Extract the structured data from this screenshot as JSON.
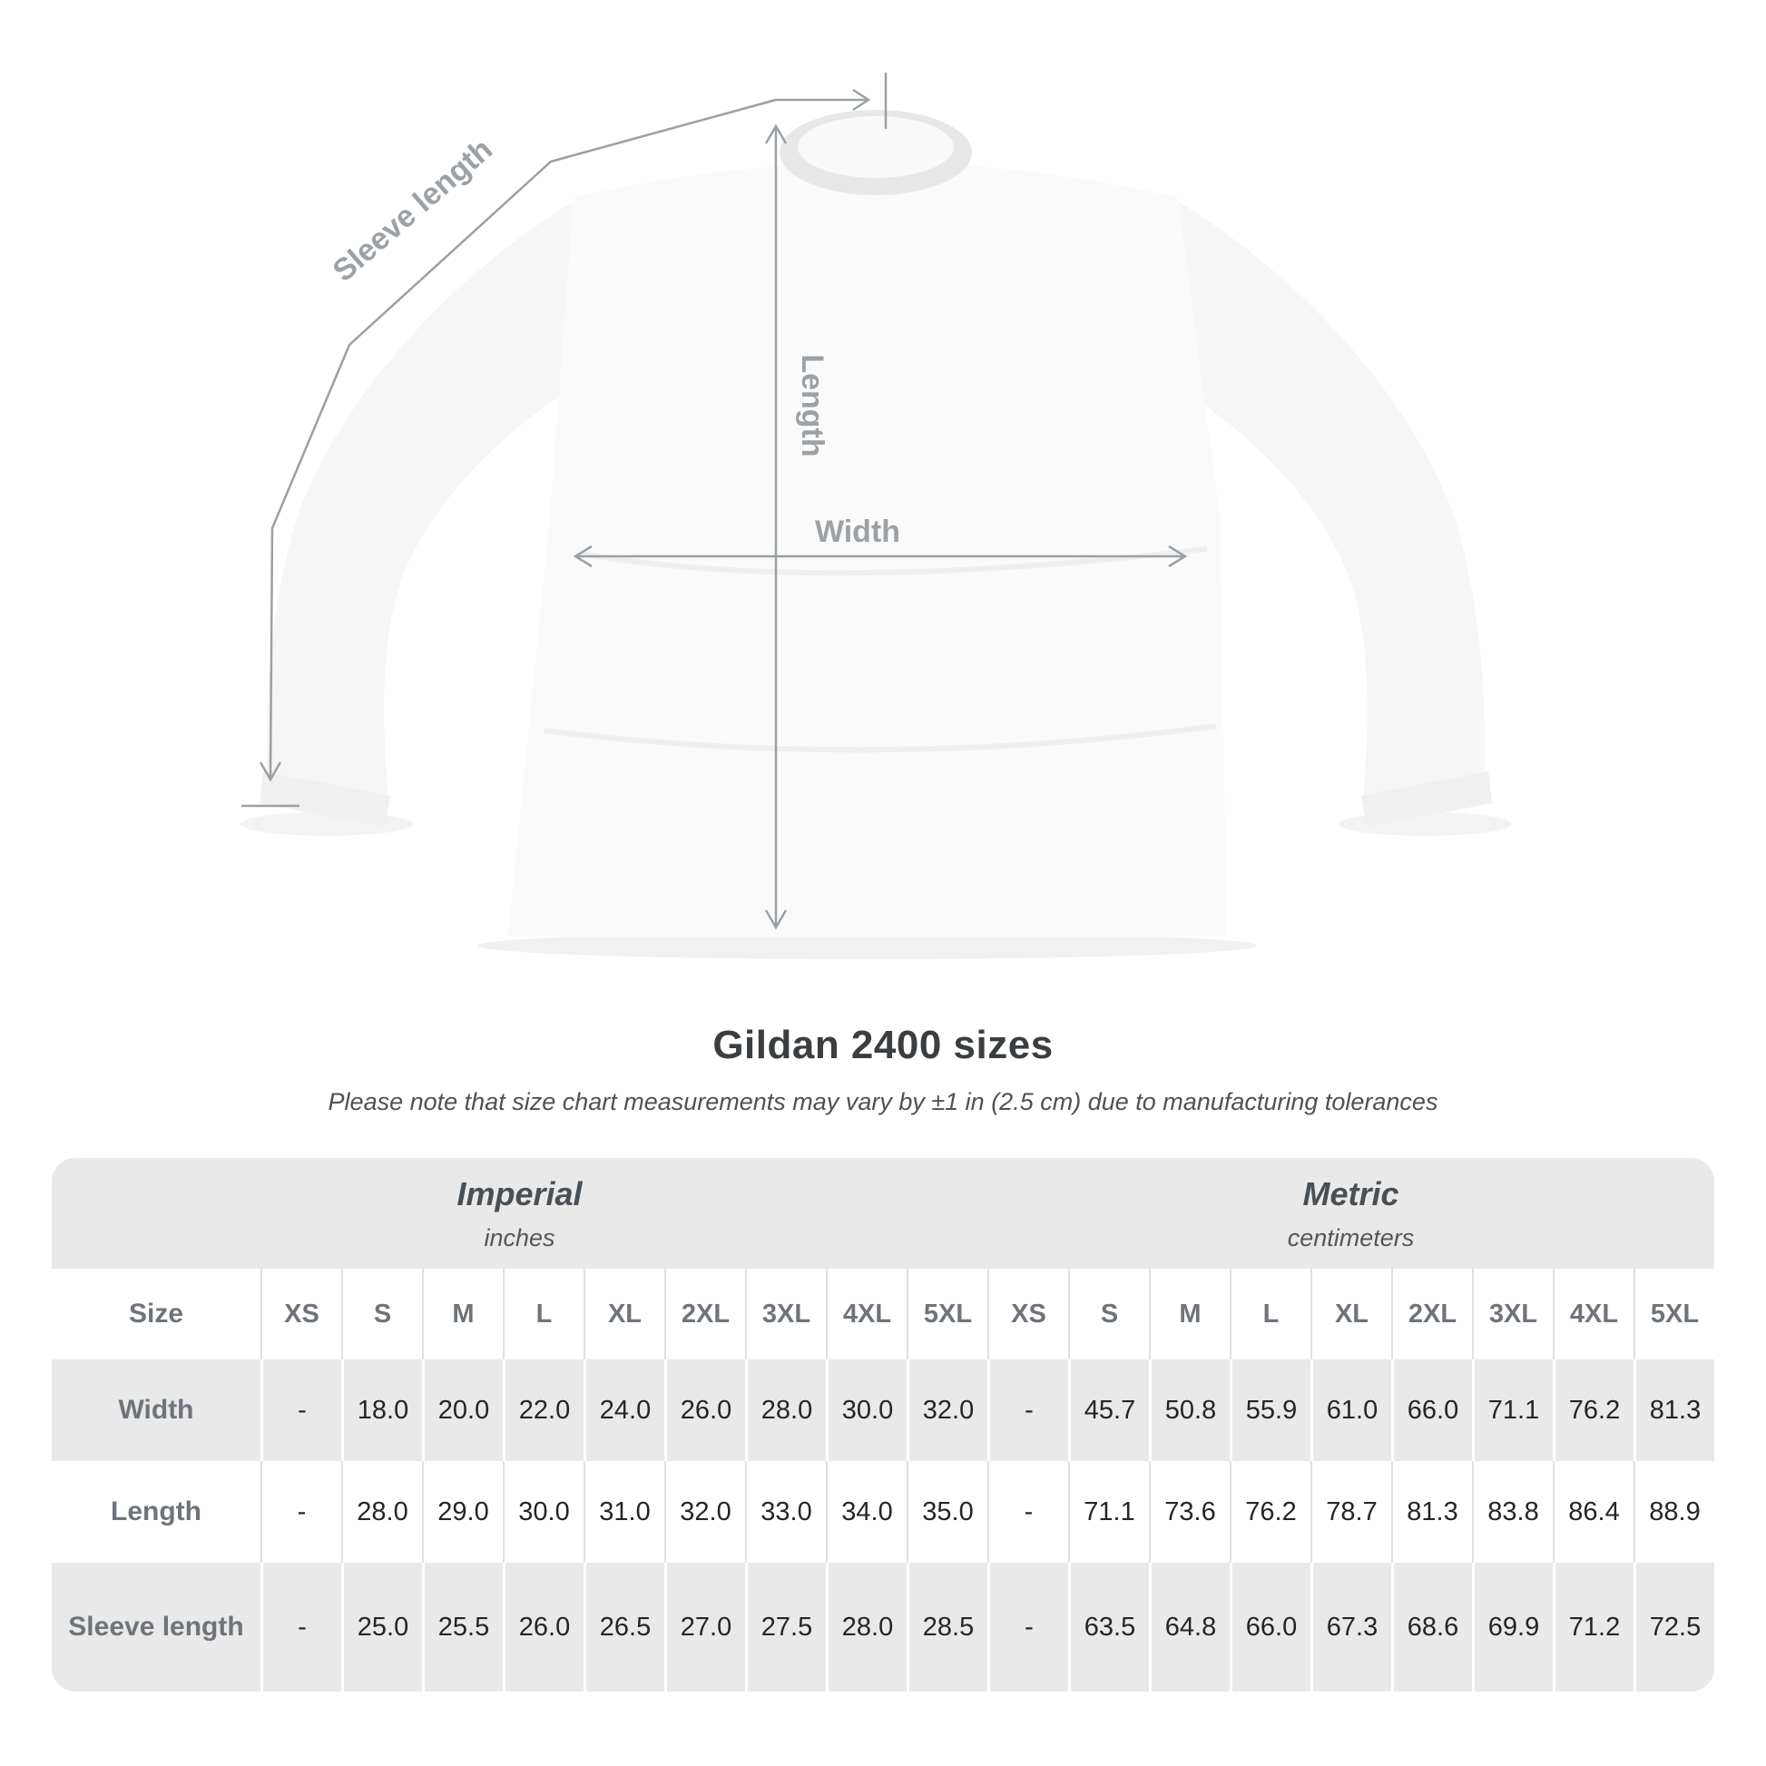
{
  "diagram": {
    "sleeve_label": "Sleeve length",
    "length_label": "Length",
    "width_label": "Width",
    "line_color": "#9aa0a4",
    "label_color": "#9ba1a5"
  },
  "title": "Gildan 2400 sizes",
  "note": "Please note that size chart measurements may vary by ±1 in (2.5 cm) due to manufacturing tolerances",
  "colors": {
    "title_text": "#3b3e40",
    "note_text": "#4e5254",
    "header_text": "#6e747a",
    "value_text": "#232629",
    "row_alt_bg": "#e9e9ea",
    "row_bg": "#ffffff"
  },
  "chart_data": {
    "type": "table",
    "title": "Gildan 2400 sizes",
    "note": "Please note that size chart measurements may vary by ±1 in (2.5 cm) due to manufacturing tolerances",
    "column_groups": [
      {
        "label": "Imperial",
        "sublabel": "inches"
      },
      {
        "label": "Metric",
        "sublabel": "centimeters"
      }
    ],
    "corner_header": "Size",
    "columns": [
      "XS",
      "S",
      "M",
      "L",
      "XL",
      "2XL",
      "3XL",
      "4XL",
      "5XL",
      "XS",
      "S",
      "M",
      "L",
      "XL",
      "2XL",
      "3XL",
      "4XL",
      "5XL"
    ],
    "rows": [
      {
        "label": "Width",
        "values": [
          "-",
          "18.0",
          "20.0",
          "22.0",
          "24.0",
          "26.0",
          "28.0",
          "30.0",
          "32.0",
          "-",
          "45.7",
          "50.8",
          "55.9",
          "61.0",
          "66.0",
          "71.1",
          "76.2",
          "81.3"
        ]
      },
      {
        "label": "Length",
        "values": [
          "-",
          "28.0",
          "29.0",
          "30.0",
          "31.0",
          "32.0",
          "33.0",
          "34.0",
          "35.0",
          "-",
          "71.1",
          "73.6",
          "76.2",
          "78.7",
          "81.3",
          "83.8",
          "86.4",
          "88.9"
        ]
      },
      {
        "label": "Sleeve length",
        "values": [
          "-",
          "25.0",
          "25.5",
          "26.0",
          "26.5",
          "27.0",
          "27.5",
          "28.0",
          "28.5",
          "-",
          "63.5",
          "64.8",
          "66.0",
          "67.3",
          "68.6",
          "69.9",
          "71.2",
          "72.5"
        ]
      }
    ]
  }
}
